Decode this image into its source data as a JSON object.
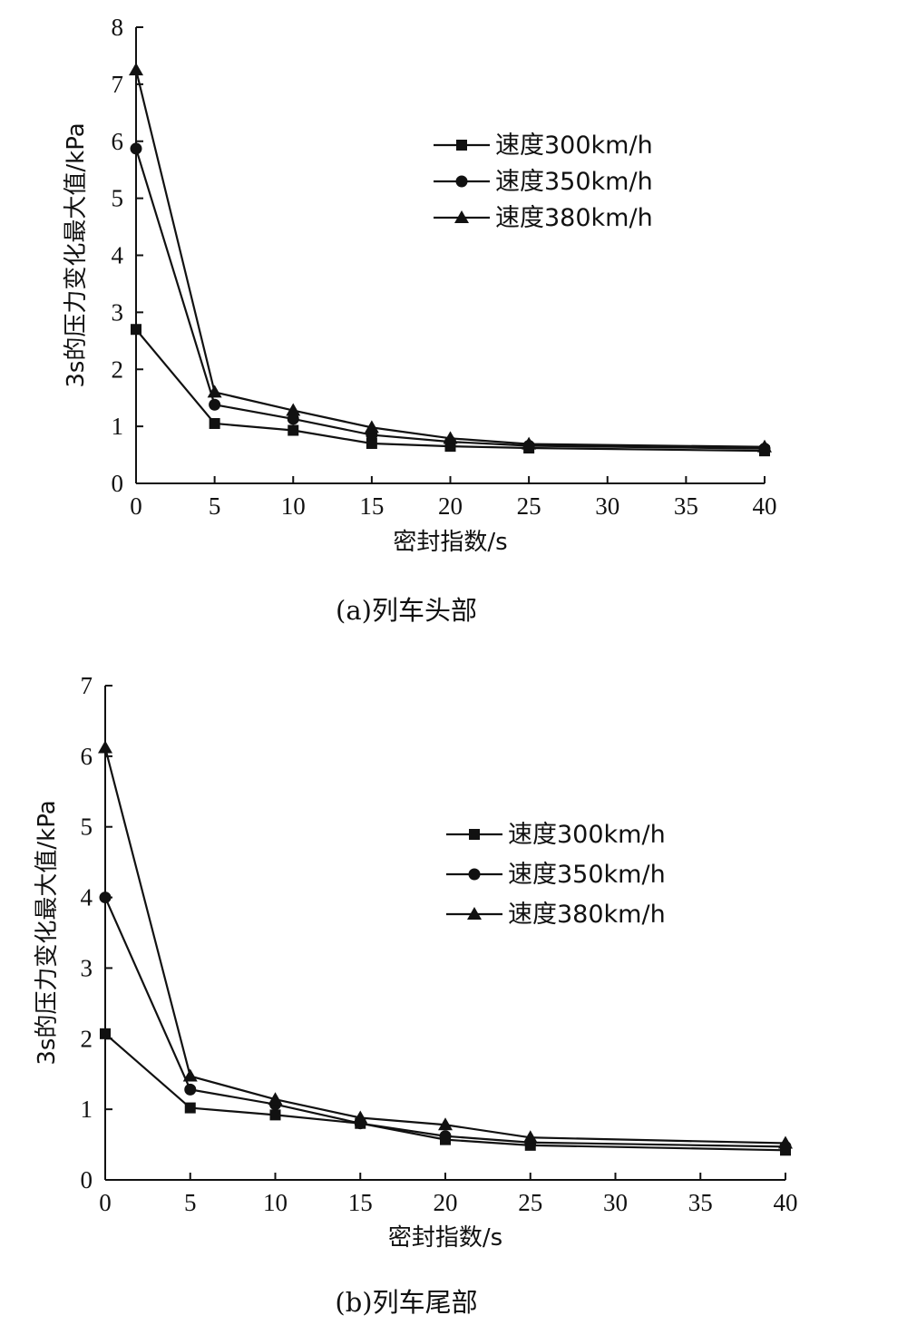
{
  "chart_data": [
    {
      "type": "line",
      "caption": "(a)列车头部",
      "xlabel": "密封指数/s",
      "ylabel": "3s的压力变化最大值/kPa",
      "xlim": [
        0,
        40
      ],
      "ylim": [
        0,
        8
      ],
      "xticks": [
        0,
        5,
        10,
        15,
        20,
        25,
        30,
        35,
        40
      ],
      "yticks": [
        0,
        1,
        2,
        3,
        4,
        5,
        6,
        7,
        8
      ],
      "legend_position": "top-right",
      "x": [
        0,
        5,
        10,
        15,
        20,
        25,
        40
      ],
      "series": [
        {
          "name": "速度300km/h",
          "marker": "square",
          "values": [
            2.7,
            1.05,
            0.93,
            0.7,
            0.65,
            0.62,
            0.57
          ]
        },
        {
          "name": "速度350km/h",
          "marker": "circle",
          "values": [
            5.87,
            1.38,
            1.13,
            0.85,
            0.73,
            0.66,
            0.61
          ]
        },
        {
          "name": "速度380km/h",
          "marker": "triangle",
          "values": [
            7.25,
            1.6,
            1.28,
            0.98,
            0.79,
            0.69,
            0.64
          ]
        }
      ]
    },
    {
      "type": "line",
      "caption": "(b)列车尾部",
      "xlabel": "密封指数/s",
      "ylabel": "3s的压力变化最大值/kPa",
      "xlim": [
        0,
        40
      ],
      "ylim": [
        0,
        7
      ],
      "xticks": [
        0,
        5,
        10,
        15,
        20,
        25,
        30,
        35,
        40
      ],
      "yticks": [
        0,
        1,
        2,
        3,
        4,
        5,
        6,
        7
      ],
      "legend_position": "center-right",
      "x": [
        0,
        5,
        10,
        15,
        20,
        25,
        40
      ],
      "series": [
        {
          "name": "速度300km/h",
          "marker": "square",
          "values": [
            2.07,
            1.02,
            0.92,
            0.8,
            0.57,
            0.49,
            0.42
          ]
        },
        {
          "name": "速度350km/h",
          "marker": "circle",
          "values": [
            4.0,
            1.28,
            1.07,
            0.8,
            0.62,
            0.53,
            0.47
          ]
        },
        {
          "name": "速度380km/h",
          "marker": "triangle",
          "values": [
            6.12,
            1.47,
            1.14,
            0.88,
            0.78,
            0.6,
            0.52
          ]
        }
      ]
    }
  ]
}
